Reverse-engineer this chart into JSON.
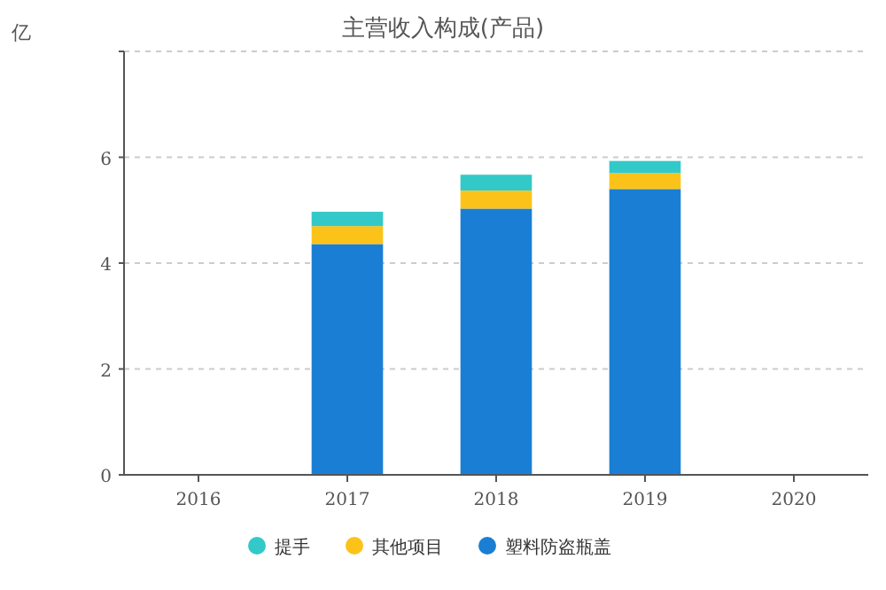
{
  "chart_data": {
    "type": "bar",
    "title": "主营收入构成(产品)",
    "ylabel": "亿",
    "categories": [
      "2016",
      "2017",
      "2018",
      "2019",
      "2020"
    ],
    "stacked": true,
    "legend": "bottom",
    "grid": "y",
    "ylim": [
      0,
      8
    ],
    "yticks": [
      0,
      2,
      4,
      6,
      {
        "value": 8,
        "label": null
      }
    ],
    "series": [
      {
        "name": "塑料防盗瓶盖",
        "color": "#1a7fd4",
        "values": [
          null,
          4.36,
          5.03,
          5.4,
          null
        ]
      },
      {
        "name": "其他项目",
        "color": "#fbc31a",
        "values": [
          null,
          0.34,
          0.34,
          0.3,
          null
        ]
      },
      {
        "name": "提手",
        "color": "#33c9c9",
        "values": [
          null,
          0.27,
          0.3,
          0.23,
          null
        ]
      }
    ]
  }
}
